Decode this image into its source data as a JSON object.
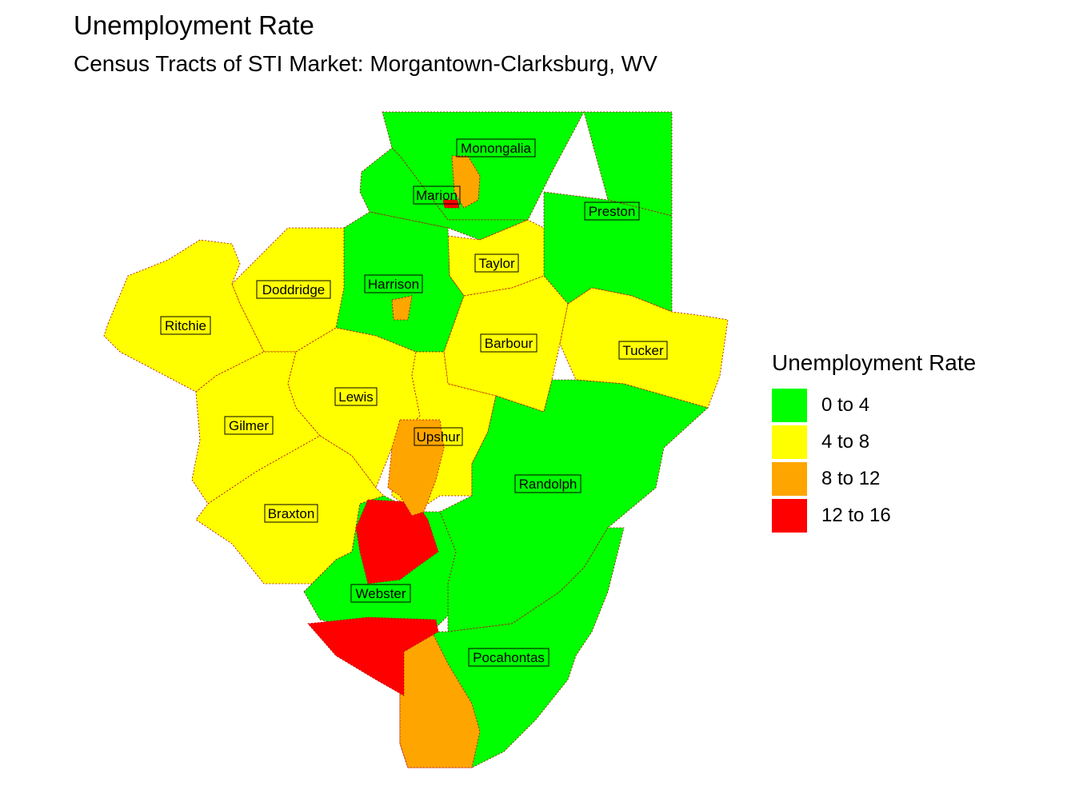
{
  "title": "Unemployment Rate",
  "subtitle": "Census Tracts of STI Market: Morgantown-Clarksburg, WV",
  "legend": {
    "title": "Unemployment Rate",
    "items": [
      {
        "label": "0 to 4",
        "color": "#00ff00"
      },
      {
        "label": "4 to 8",
        "color": "#ffff00"
      },
      {
        "label": "8 to 12",
        "color": "#ffa500"
      },
      {
        "label": "12 to 16",
        "color": "#ff0000"
      }
    ]
  },
  "colors": {
    "border": "#b00000",
    "outline": "#000000"
  },
  "counties": [
    {
      "name": "Monongalia",
      "fill": "#00ff00"
    },
    {
      "name": "Marion",
      "fill": "#00ff00"
    },
    {
      "name": "Preston",
      "fill": "#00ff00"
    },
    {
      "name": "Taylor",
      "fill": "#ffff00"
    },
    {
      "name": "Harrison",
      "fill": "#00ff00"
    },
    {
      "name": "Doddridge",
      "fill": "#ffff00"
    },
    {
      "name": "Ritchie",
      "fill": "#ffff00"
    },
    {
      "name": "Barbour",
      "fill": "#ffff00"
    },
    {
      "name": "Tucker",
      "fill": "#ffff00"
    },
    {
      "name": "Lewis",
      "fill": "#ffff00"
    },
    {
      "name": "Gilmer",
      "fill": "#ffff00"
    },
    {
      "name": "Upshur",
      "fill": "#ffff00"
    },
    {
      "name": "Randolph",
      "fill": "#00ff00"
    },
    {
      "name": "Braxton",
      "fill": "#ffff00"
    },
    {
      "name": "Webster",
      "fill": "#00ff00"
    },
    {
      "name": "Pocahontas",
      "fill": "#00ff00"
    }
  ]
}
